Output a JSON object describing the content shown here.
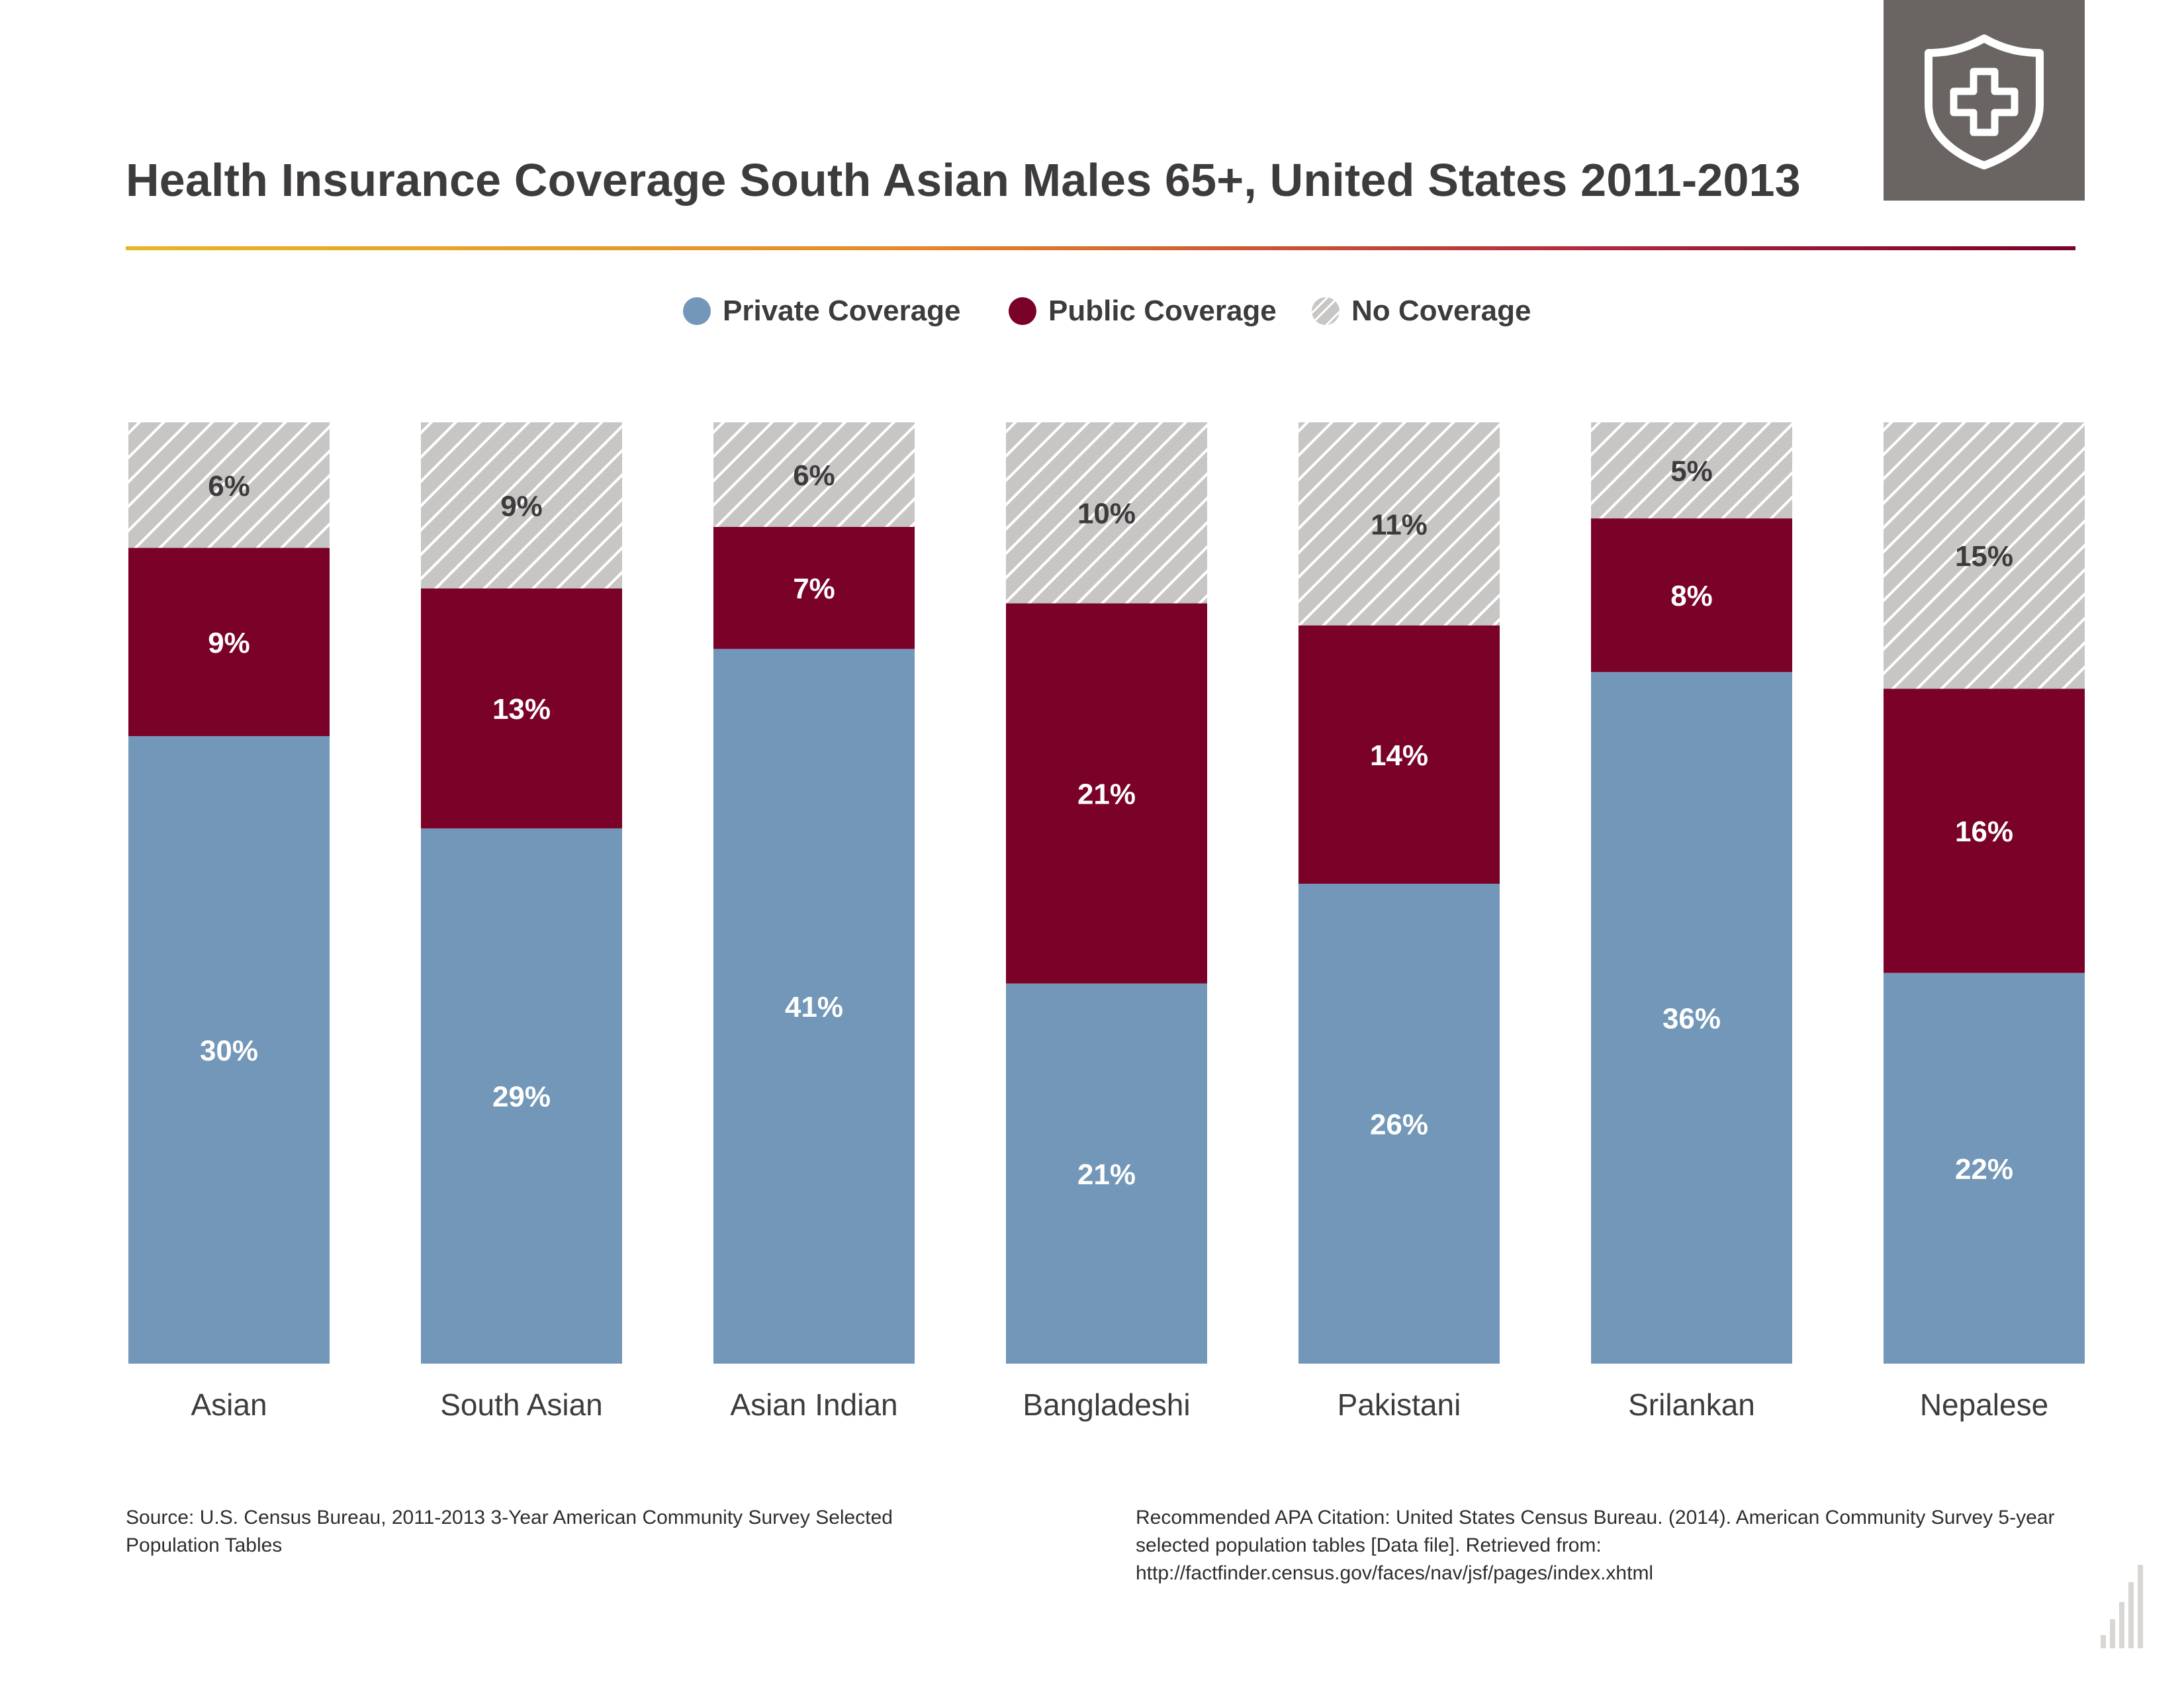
{
  "header": {
    "title": "Health Insurance Coverage South Asian Males 65+, United States 2011-2013",
    "logo_icon": "shield-cross-icon"
  },
  "legend": {
    "items": [
      {
        "label": "Private Coverage",
        "color": "#7397b8"
      },
      {
        "label": "Public Coverage",
        "color": "#7a0128"
      },
      {
        "label": "No Coverage",
        "color": "#c8c6c4"
      }
    ]
  },
  "chart_data": {
    "type": "bar",
    "stacked": true,
    "normalized_to_full_height": true,
    "categories": [
      "Asian",
      "South Asian",
      "Asian Indian",
      "Bangladeshi",
      "Pakistani",
      "Srilankan",
      "Nepalese"
    ],
    "series": [
      {
        "name": "Private Coverage",
        "values": [
          30,
          29,
          41,
          21,
          26,
          36,
          22
        ],
        "labels": [
          "30%",
          "29%",
          "41%",
          "21%",
          "26%",
          "36%",
          "22%"
        ],
        "color": "#7397b8"
      },
      {
        "name": "Public Coverage",
        "values": [
          9,
          13,
          7,
          21,
          14,
          8,
          16
        ],
        "labels": [
          "9%",
          "13%",
          "7%",
          "21%",
          "14%",
          "8%",
          "16%"
        ],
        "color": "#7a0128"
      },
      {
        "name": "No Coverage",
        "values": [
          6,
          9,
          6,
          10,
          11,
          5,
          15
        ],
        "labels": [
          "6%",
          "9%",
          "6%",
          "10%",
          "11%",
          "5%",
          "15%"
        ],
        "color": "#c8c6c4",
        "pattern": "diagonal-hatch"
      }
    ],
    "legend_position": "top-center",
    "grid": false
  },
  "footer": {
    "source": "Source: U.S. Census Bureau, 2011-2013 3-Year American Community Survey Selected Population Tables",
    "citation": "Recommended APA Citation: United States Census Bureau. (2014). American Community Survey 5-year selected population tables [Data file]. Retrieved from: http://factfinder.census.gov/faces/nav/jsf/pages/index.xhtml",
    "corner_icon": "bar-chart-icon"
  }
}
